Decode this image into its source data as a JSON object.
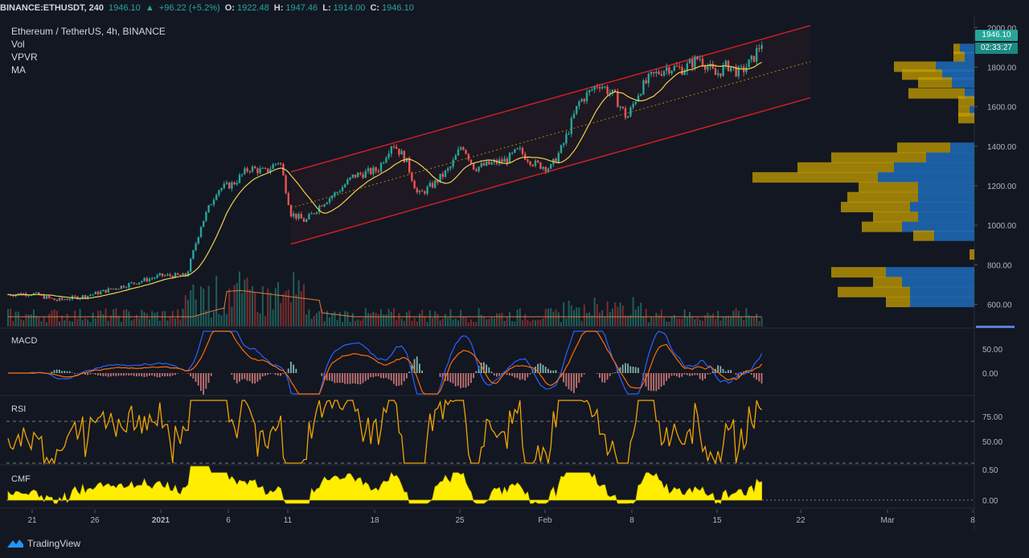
{
  "header": {
    "symbol": "BINANCE:ETHUSDT, 240",
    "last": "1946.10",
    "change": "+96.22 (+5.2%)",
    "o_label": "O:",
    "o": "1922.48",
    "h_label": "H:",
    "h": "1947.46",
    "l_label": "L:",
    "l": "1914.00",
    "c_label": "C:",
    "c": "1946.10"
  },
  "legend": {
    "title": "Ethereum / TetherUS, 4h, BINANCE",
    "vol": "Vol",
    "vpvr": "VPVR",
    "ma": "MA"
  },
  "panels": {
    "macd": "MACD",
    "rsi": "RSI",
    "cmf": "CMF"
  },
  "price_tags": {
    "price": "1946.10",
    "countdown": "02:33:27"
  },
  "branding": {
    "name": "TradingView"
  },
  "colors": {
    "bg": "#131722",
    "up": "#26a69a",
    "down": "#ef5350",
    "ma": "#f0d050",
    "channel": "#e0202a",
    "vpvr_up": "#1e6bb8",
    "vpvr_down": "#c8a000",
    "rsi": "#f0a500",
    "cmf": "#ffee00"
  },
  "chart_data": [
    {
      "type": "candlestick",
      "name": "Ethereum / TetherUS, 4h, BINANCE",
      "x_ticks": [
        "21",
        "26",
        "2021",
        "6",
        "11",
        "18",
        "25",
        "Feb",
        "8",
        "15",
        "22",
        "Mar",
        "8"
      ],
      "y_ticks": [
        2000,
        1800,
        1600,
        1400,
        1200,
        1000,
        800,
        600
      ],
      "ylim": [
        480,
        2050
      ],
      "ohlc_close_path": [
        [
          "21",
          650
        ],
        [
          "26",
          645
        ],
        [
          "2021",
          745
        ],
        [
          "Jan 4",
          1100
        ],
        [
          "6",
          1220
        ],
        [
          "8",
          1280
        ],
        [
          "10",
          1340
        ],
        [
          "11",
          1050
        ],
        [
          "13",
          1080
        ],
        [
          "15",
          1250
        ],
        [
          "18",
          1260
        ],
        [
          "19",
          1420
        ],
        [
          "21",
          1240
        ],
        [
          "23",
          1150
        ],
        [
          "25",
          1370
        ],
        [
          "27",
          1280
        ],
        [
          "Feb",
          1350
        ],
        [
          "Feb 2",
          1320
        ],
        [
          "Feb 4",
          1650
        ],
        [
          "Feb 6",
          1720
        ],
        [
          "8",
          1580
        ],
        [
          "9",
          1750
        ],
        [
          "11",
          1800
        ],
        [
          "13",
          1840
        ],
        [
          "15",
          1780
        ],
        [
          "17",
          1800
        ],
        [
          "19",
          1946
        ]
      ],
      "channel": {
        "upper": [
          [
            1270,
            "Jan 11"
          ],
          [
            2000,
            "Feb 21"
          ]
        ],
        "lower": [
          [
            910,
            "Jan 11"
          ],
          [
            1640,
            "Feb 21"
          ]
        ]
      },
      "ma_line": true,
      "volume": true,
      "vpvr": true
    },
    {
      "type": "line",
      "name": "MACD",
      "y_ticks": [
        50,
        0
      ]
    },
    {
      "type": "line",
      "name": "RSI",
      "y_ticks": [
        75,
        50
      ],
      "levels": [
        70,
        30
      ]
    },
    {
      "type": "area",
      "name": "CMF",
      "y_ticks": [
        0.5,
        0
      ]
    }
  ]
}
